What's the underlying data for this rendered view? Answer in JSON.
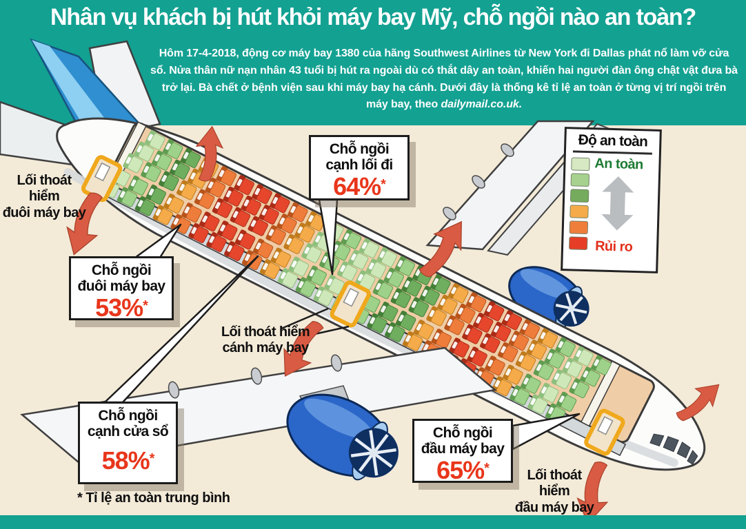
{
  "header": {
    "title": "Nhân vụ khách bị hút khỏi máy bay Mỹ, chỗ ngồi nào an toàn?",
    "body": "Hôm 17-4-2018,  động cơ máy bay 1380 của hãng Southwest Airlines từ New York đi Dallas  phát nổ làm vỡ cửa sổ. Nửa thân nữ nạn nhân 43 tuổi bị hút ra ngoài dù có thắt dây an toàn, khiến hai người đàn ông chật vật đưa bà trở lại. Bà chết ở bệnh viện sau khi máy bay hạ cánh. Dưới đây là thống kê tỉ lệ an toàn ở từng vị trí ngồi trên máy bay, theo ",
    "source": "dailymail.co.uk."
  },
  "callouts": {
    "aisle": {
      "label": "Chỗ ngồi\ncạnh lối đi",
      "value": "64%",
      "asterisk": "*"
    },
    "rear": {
      "label": "Chỗ ngồi\nđuôi máy bay",
      "value": "53%",
      "asterisk": "*"
    },
    "window": {
      "label": "Chỗ ngồi\ncạnh cửa sổ",
      "value": "58%",
      "asterisk": "*"
    },
    "front": {
      "label": "Chỗ ngồi\nđầu máy bay",
      "value": "65%",
      "asterisk": "*"
    }
  },
  "exits": {
    "rear": "Lối thoát\nhiểm\nđuôi máy bay",
    "wing": "Lối thoát hiểm\ncánh máy bay",
    "front": "Lối thoát\nhiểm\nđầu máy bay"
  },
  "legend": {
    "title": "Độ an toàn",
    "safe_label": "An toàn",
    "risk_label": "Rủi ro",
    "colors": [
      "#d6e9c2",
      "#a6d18f",
      "#74ab5c",
      "#f5ab49",
      "#ef7e3b",
      "#e63d26"
    ]
  },
  "footnote": "* Tỉ lệ an toàn trung bình",
  "colors": {
    "teal": "#13a192",
    "background": "#f3ead8",
    "percent_red": "#e8361b",
    "arrow_red": "#d95b43",
    "door_yellow": "#f0a81c",
    "engine_blue": "#2b66c9",
    "tail_blue": "#2f8fd0",
    "safe_green": "#1e7b33",
    "risk_red": "#e2301c"
  },
  "seat_map": {
    "palette": {
      "g1": [
        "#cfe8ba",
        "#8fbf7d"
      ],
      "g2": [
        "#9ed189",
        "#5f9c50"
      ],
      "g3": [
        "#6fae5e",
        "#447f38"
      ],
      "o1": [
        "#f5ab49",
        "#c07b1c"
      ],
      "o2": [
        "#ee7c3b",
        "#b9541b"
      ],
      "r": [
        "#e5462c",
        "#ab2c17"
      ]
    },
    "rows": [
      "g1",
      "g2",
      "g3",
      "o1",
      "o2",
      "r",
      "r",
      "r",
      "o2",
      "o1",
      "g1",
      "g2",
      "g1",
      "g1",
      "g2",
      "g3",
      "g3",
      "o1",
      "o2",
      "r",
      "r",
      "o2",
      "o1",
      "g2",
      "g1",
      "g2"
    ],
    "seat_offsets": [
      -54,
      -32,
      -10,
      16,
      38
    ]
  },
  "chart_data": {
    "type": "seat-safety-diagram",
    "values": [
      {
        "position": "Chỗ ngồi cạnh lối đi",
        "safety_pct": 64
      },
      {
        "position": "Chỗ ngồi đuôi máy bay",
        "safety_pct": 53
      },
      {
        "position": "Chỗ ngồi cạnh cửa sổ",
        "safety_pct": 58
      },
      {
        "position": "Chỗ ngồi đầu máy bay",
        "safety_pct": 65
      }
    ],
    "note": "* Tỉ lệ an toàn trung bình"
  }
}
